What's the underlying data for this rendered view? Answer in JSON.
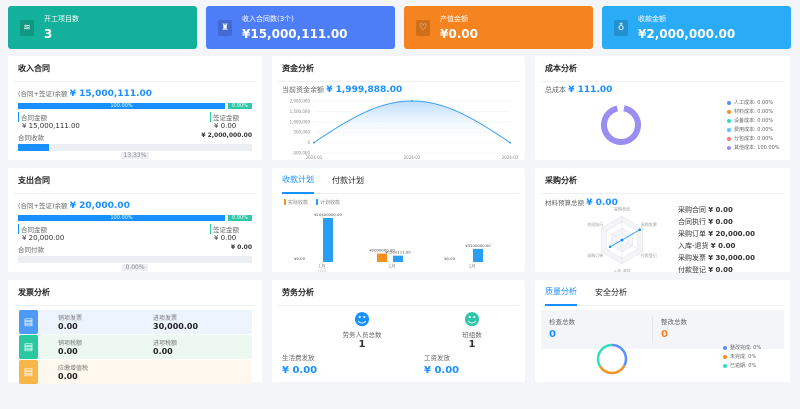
{
  "kpis": [
    {
      "label": "开工项目数",
      "value": "3",
      "color": "#13b19b",
      "icon": "layers-icon",
      "glyph": "≋"
    },
    {
      "label": "收入合同数(3个)",
      "value": "¥15,000,111.00",
      "color": "#4e7ef7",
      "icon": "stamp-icon",
      "glyph": "♜"
    },
    {
      "label": "产值金额",
      "value": "¥0.00",
      "color": "#f5831f",
      "icon": "diamond-icon",
      "glyph": "♡"
    },
    {
      "label": "收款金额",
      "value": "¥2,000,000.00",
      "color": "#2aabf5",
      "icon": "money-bag-icon",
      "glyph": "♁"
    }
  ],
  "income": {
    "title": "收入合同",
    "balance_label": "(合同+签证)余额",
    "balance": "¥ 15,000,111.00",
    "contract_pct": "100.00%",
    "visa_pct": "0.00%",
    "contract_label": "合同金额",
    "contract_value": "¥ 15,000,111.00",
    "visa_label": "签证金额",
    "visa_value": "¥ 0.00",
    "collect_label": "合同收款",
    "collect_value": "¥ 2,000,000.00",
    "collect_pct": "13.33%",
    "collect_frac": 0.1333
  },
  "expense": {
    "title": "支出合同",
    "balance_label": "(合同+签证)余额",
    "balance": "¥ 20,000.00",
    "contract_pct": "100.00%",
    "visa_pct": "0.00%",
    "contract_label": "合同金额",
    "contract_value": "¥ 20,000.00",
    "visa_label": "签证金额",
    "visa_value": "¥ 0.00",
    "collect_label": "合同付款",
    "collect_value": "¥ 0.00",
    "collect_pct": "0.00%",
    "collect_frac": 0
  },
  "funds": {
    "title": "资金分析",
    "balance_label": "当前资金余额",
    "balance": "¥ 1,999,888.00"
  },
  "chart_data": [
    {
      "type": "area",
      "title": "",
      "x": [
        "2024-01",
        "2024-02",
        "2024-03"
      ],
      "values": [
        0,
        1999888,
        0
      ],
      "yticks": [
        "2,000,000",
        "1,500,000",
        "1,000,000",
        "500,000",
        "0",
        "-500,000"
      ],
      "ylim": [
        -500000,
        2000000
      ],
      "grid": true
    },
    {
      "type": "bar",
      "categories": [
        "1月",
        "2月",
        "3月"
      ],
      "xsublabel": "2024",
      "series": [
        {
          "name": "实际收款",
          "color": "#f98f21",
          "values": [
            0,
            2000000,
            0
          ],
          "labels": [
            "¥0.00",
            "¥2000000.00",
            "¥0.00"
          ]
        },
        {
          "name": "计划收款",
          "color": "#2a9df4",
          "values": [
            10400000,
            1500111,
            3100000
          ],
          "labels": [
            "¥10400000.00",
            "¥1500111.00",
            "¥3100000.00"
          ]
        }
      ],
      "legend": "top-left"
    },
    {
      "type": "pie",
      "title": "",
      "series": [
        {
          "name": "人工成本: 0.00%",
          "value": 0,
          "color": "#5b8ff9"
        },
        {
          "name": "材料成本: 0.00%",
          "value": 0,
          "color": "#f98f21"
        },
        {
          "name": "设备成本: 0.00%",
          "value": 0,
          "color": "#2ee0c0"
        },
        {
          "name": "费用成本: 0.00%",
          "value": 0,
          "color": "#5bc4f9"
        },
        {
          "name": "分包成本: 0.00%",
          "value": 0,
          "color": "#f97b7b"
        },
        {
          "name": "其他成本: 100.00%",
          "value": 100,
          "color": "#9b8ef2"
        }
      ],
      "legend": "right"
    },
    {
      "type": "radar",
      "axes": [
        "采购合同",
        "采购发票",
        "付款登记",
        "入库-退货",
        "采购订单",
        "合同执行"
      ],
      "values": [
        0,
        30000,
        0,
        0,
        20000,
        0
      ],
      "max": 30000
    }
  ],
  "payment": {
    "tabs": [
      "收款计划",
      "付款计划"
    ]
  },
  "cost": {
    "title": "成本分析",
    "total_label": "总成本",
    "total": "¥ 111.00"
  },
  "purchase": {
    "title": "采购分析",
    "budget_label": "材料预算总额",
    "budget": "¥ 0.00",
    "items": [
      {
        "label": "采购合同",
        "value": "¥ 0.00"
      },
      {
        "label": "合同执行",
        "value": "¥ 0.00"
      },
      {
        "label": "采购订单",
        "value": "¥ 20,000.00"
      },
      {
        "label": "入库-退货",
        "value": "¥ 0.00"
      },
      {
        "label": "采购发票",
        "value": "¥ 30,000.00"
      },
      {
        "label": "付款登记",
        "value": "¥ 0.00"
      }
    ]
  },
  "invoice": {
    "title": "发票分析",
    "rows": [
      {
        "icon": "receipt-icon",
        "color": "#4e9af7",
        "bg": "#eef4fe",
        "a_label": "销项发票",
        "a_value": "0.00",
        "b_label": "进项发票",
        "b_value": "30,000.00"
      },
      {
        "icon": "tax-hand-icon",
        "color": "#2ac8a0",
        "bg": "#edf8f1",
        "a_label": "销项税额",
        "a_value": "0.00",
        "b_label": "进项税额",
        "b_value": "0.00"
      },
      {
        "icon": "vat-icon",
        "color": "#f8b54a",
        "bg": "#fff8ee",
        "a_label": "应缴增值税",
        "a_value": "0.00"
      }
    ]
  },
  "labor": {
    "title": "劳务分析",
    "workers_label": "劳务人员总数",
    "workers": "1",
    "teams_label": "班组数",
    "teams": "1",
    "living_label": "生活费发放",
    "living": "¥ 0.00",
    "wage_label": "工资发放",
    "wage": "¥ 0.00"
  },
  "quality": {
    "tabs": [
      "质量分析",
      "安全分析"
    ],
    "check_label": "检查总数",
    "check": "0",
    "fix_label": "整改总数",
    "fix": "0",
    "legend": [
      {
        "label": "整改完成: 0%",
        "color": "#5b8ff9"
      },
      {
        "label": "未完成: 0%",
        "color": "#f98f21"
      },
      {
        "label": "已逾期: 0%",
        "color": "#2ee0c0"
      }
    ]
  }
}
